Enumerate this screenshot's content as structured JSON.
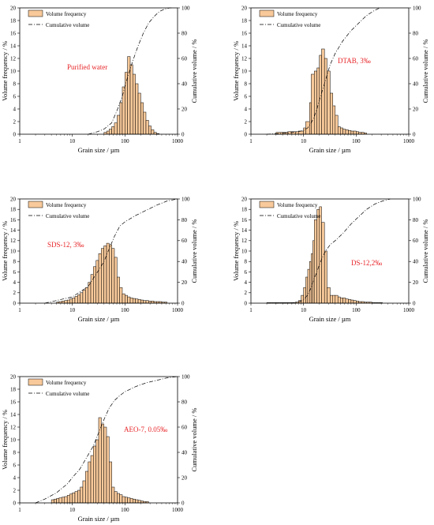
{
  "colors": {
    "bar_fill": "#f8c99a",
    "bar_stroke": "#000000",
    "annotation": "#e8262a"
  },
  "chart_data": [
    {
      "type": "bar+line",
      "annotation": "Purified water",
      "xlabel": "Grain size / µm",
      "ylabel_left": "Volume frequency / %",
      "ylabel_right": "Cumulative volume / %",
      "x_scale": "log",
      "xlim": [
        1,
        1000
      ],
      "x_ticks": [
        1,
        10,
        100,
        1000
      ],
      "ylim_left": [
        0,
        20
      ],
      "yticks_left": [
        0,
        2,
        4,
        6,
        8,
        10,
        12,
        14,
        16,
        18,
        20
      ],
      "ylim_right": [
        0,
        100
      ],
      "yticks_right": [
        0,
        20,
        40,
        60,
        80,
        100
      ],
      "legend": {
        "position": "top-left",
        "entries": [
          "Volume frequency",
          "Cumulative volume"
        ]
      },
      "grid": false,
      "bin_edges": [
        40,
        45,
        50,
        56,
        63,
        71,
        80,
        89,
        100,
        112,
        126,
        141,
        158,
        178,
        200,
        224,
        251,
        282,
        316,
        355,
        398,
        447
      ],
      "volume_frequency": [
        0.3,
        0.5,
        0.8,
        1.2,
        1.8,
        3.0,
        5.0,
        7.5,
        9.8,
        12.3,
        11.0,
        9.5,
        8.0,
        6.5,
        5.0,
        3.5,
        2.2,
        1.3,
        0.7,
        0.3,
        0.1
      ],
      "cumulative": {
        "x": [
          20,
          30,
          40,
          56,
          71,
          89,
          112,
          141,
          178,
          224,
          282,
          355,
          447,
          562,
          708,
          800
        ],
        "y": [
          0,
          2,
          4,
          9,
          19,
          30,
          45,
          58,
          70,
          80,
          88,
          93,
          97,
          99,
          100,
          100
        ]
      }
    },
    {
      "type": "bar+line",
      "annotation": "DTAB, 3‰",
      "xlabel": "Grain size / µm",
      "ylabel_left": "Volume frequency / %",
      "ylabel_right": "Cumulative volume / %",
      "x_scale": "log",
      "xlim": [
        1,
        1000
      ],
      "x_ticks": [
        1,
        10,
        100,
        1000
      ],
      "ylim_left": [
        0,
        20
      ],
      "yticks_left": [
        0,
        2,
        4,
        6,
        8,
        10,
        12,
        14,
        16,
        18,
        20
      ],
      "ylim_right": [
        0,
        100
      ],
      "yticks_right": [
        0,
        20,
        40,
        60,
        80,
        100
      ],
      "legend": {
        "position": "top-left",
        "entries": [
          "Volume frequency",
          "Cumulative volume"
        ]
      },
      "grid": false,
      "bin_edges": [
        3,
        4,
        5,
        6,
        7,
        8,
        10,
        11,
        13,
        14,
        16,
        18,
        20,
        22,
        25,
        28,
        32,
        36,
        40,
        45,
        50,
        56,
        63,
        71,
        80,
        89,
        100,
        112,
        126,
        141,
        158
      ],
      "volume_frequency": [
        0.3,
        0.3,
        0.4,
        0.4,
        0.4,
        0.5,
        1.0,
        2.0,
        5.0,
        9.5,
        10.0,
        10.5,
        12.5,
        13.5,
        12.0,
        10.0,
        6.5,
        4.5,
        3.0,
        1.2,
        1.0,
        0.8,
        0.7,
        0.6,
        0.5,
        0.5,
        0.4,
        0.3,
        0.3,
        0.2
      ],
      "cumulative": {
        "x": [
          2,
          5,
          8,
          10,
          12,
          14,
          16,
          18,
          20,
          25,
          32,
          40,
          56,
          80,
          112,
          158,
          224,
          282
        ],
        "y": [
          0,
          1,
          2,
          3,
          5,
          9,
          14,
          20,
          27,
          40,
          55,
          64,
          74,
          82,
          88,
          94,
          98,
          100
        ]
      }
    },
    {
      "type": "bar+line",
      "annotation": "SDS-12, 3‰",
      "xlabel": "Grain size / µm",
      "ylabel_left": "Volume frequency / %",
      "ylabel_right": "Cumulative volume / %",
      "x_scale": "log",
      "xlim": [
        1,
        1000
      ],
      "x_ticks": [
        1,
        10,
        100,
        1000
      ],
      "ylim_left": [
        0,
        20
      ],
      "yticks_left": [
        0,
        2,
        4,
        6,
        8,
        10,
        12,
        14,
        16,
        18,
        20
      ],
      "ylim_right": [
        0,
        100
      ],
      "yticks_right": [
        0,
        20,
        40,
        60,
        80,
        100
      ],
      "legend": {
        "position": "top-left",
        "entries": [
          "Volume frequency",
          "Cumulative volume"
        ]
      },
      "grid": false,
      "bin_edges": [
        5,
        5.6,
        6.3,
        7.1,
        8,
        8.9,
        10,
        11.2,
        12.6,
        14.1,
        15.8,
        17.8,
        20,
        22.4,
        25.1,
        28.2,
        31.6,
        35.5,
        39.8,
        44.7,
        50.1,
        56.2,
        63.1,
        70.8,
        79.4,
        89.1,
        100,
        112,
        126,
        141,
        158,
        178,
        200,
        224,
        251,
        282,
        316,
        355,
        398,
        447,
        501,
        562,
        631
      ],
      "volume_frequency": [
        0.2,
        0.3,
        0.4,
        0.5,
        0.6,
        0.8,
        1.0,
        1.3,
        1.6,
        2.0,
        2.5,
        3.0,
        4.0,
        5.5,
        7.0,
        8.2,
        9.5,
        10.5,
        11.0,
        11.5,
        11.2,
        10.5,
        8.8,
        5.0,
        3.0,
        1.8,
        1.5,
        1.2,
        1.0,
        0.9,
        0.8,
        0.7,
        0.6,
        0.5,
        0.5,
        0.4,
        0.4,
        0.3,
        0.3,
        0.3,
        0.2,
        0.2
      ],
      "cumulative": {
        "x": [
          3,
          10,
          20,
          32,
          40,
          50,
          63,
          80,
          100,
          158,
          251,
          398,
          631,
          1000
        ],
        "y": [
          0,
          6,
          16,
          32,
          40,
          52,
          64,
          74,
          78,
          84,
          89,
          94,
          98,
          100
        ]
      }
    },
    {
      "type": "bar+line",
      "annotation": "DS-12,2‰",
      "xlabel": "Grain size / µm",
      "ylabel_left": "Volume frequency / %",
      "ylabel_right": "Cumulative volume / %",
      "x_scale": "log",
      "xlim": [
        1,
        1000
      ],
      "x_ticks": [
        1,
        10,
        100,
        1000
      ],
      "ylim_left": [
        0,
        20
      ],
      "yticks_left": [
        0,
        2,
        4,
        6,
        8,
        10,
        12,
        14,
        16,
        18,
        20
      ],
      "ylim_right": [
        0,
        100
      ],
      "yticks_right": [
        0,
        20,
        40,
        60,
        80,
        100
      ],
      "legend": {
        "position": "top-left",
        "entries": [
          "Volume frequency",
          "Cumulative volume"
        ]
      },
      "grid": false,
      "bin_edges": [
        2,
        3,
        4,
        5,
        6,
        7,
        8,
        9,
        10,
        11,
        12,
        13,
        14,
        15,
        16,
        18,
        20,
        22,
        25,
        28,
        32,
        36,
        40,
        45,
        50,
        56,
        63,
        71,
        80,
        89,
        100,
        112,
        126,
        141,
        158,
        178,
        200,
        224,
        251,
        282,
        316
      ],
      "volume_frequency": [
        0.1,
        0.1,
        0.1,
        0.1,
        0.1,
        0.2,
        0.5,
        1.5,
        3.0,
        5.0,
        6.5,
        8.0,
        9.5,
        12.0,
        16.0,
        18.0,
        18.5,
        15.5,
        10.0,
        3.0,
        1.5,
        1.5,
        1.5,
        1.2,
        1.0,
        1.0,
        0.8,
        0.7,
        0.6,
        0.5,
        0.4,
        0.3,
        0.3,
        0.2,
        0.2,
        0.2,
        0.1,
        0.1,
        0.1,
        0.1
      ],
      "cumulative": {
        "x": [
          2,
          5,
          8,
          10,
          12,
          14,
          16,
          18,
          20,
          22,
          25,
          28,
          32,
          40,
          56,
          80,
          112,
          158,
          224,
          316,
          447
        ],
        "y": [
          0,
          0,
          1,
          3,
          8,
          15,
          24,
          30,
          37,
          42,
          48,
          52,
          56,
          60,
          67,
          76,
          83,
          90,
          95,
          98,
          100
        ]
      }
    },
    {
      "type": "bar+line",
      "annotation": "AEO-7, 0.05‰",
      "xlabel": "Grain size / µm",
      "ylabel_left": "Volume frequency / %",
      "ylabel_right": "Cumulative volume / %",
      "x_scale": "log",
      "xlim": [
        1,
        1000
      ],
      "x_ticks": [
        1,
        10,
        100,
        1000
      ],
      "ylim_left": [
        0,
        20
      ],
      "yticks_left": [
        0,
        2,
        4,
        6,
        8,
        10,
        12,
        14,
        16,
        18,
        20
      ],
      "ylim_right": [
        0,
        100
      ],
      "yticks_right": [
        0,
        20,
        40,
        60,
        80,
        100
      ],
      "legend": {
        "position": "top-left",
        "entries": [
          "Volume frequency",
          "Cumulative volume"
        ]
      },
      "grid": false,
      "bin_edges": [
        4,
        4.5,
        5,
        5.6,
        6.3,
        7.1,
        8,
        8.9,
        10,
        11.2,
        12.6,
        14.1,
        15.8,
        17.8,
        20,
        22.4,
        25.1,
        28.2,
        31.6,
        35.5,
        39.8,
        44.7,
        50.1,
        56.2,
        63.1,
        70.8,
        79.4,
        89.1,
        100,
        112,
        126,
        141,
        158,
        178,
        200,
        224,
        251,
        282
      ],
      "volume_frequency": [
        0.5,
        0.6,
        0.7,
        0.8,
        0.9,
        1.0,
        1.2,
        1.4,
        1.6,
        1.8,
        2.0,
        2.5,
        3.5,
        5.0,
        6.5,
        7.5,
        9.0,
        10.0,
        13.5,
        12.5,
        12.0,
        10.5,
        6.5,
        2.5,
        1.8,
        1.5,
        1.3,
        1.0,
        0.9,
        0.8,
        0.7,
        0.6,
        0.5,
        0.4,
        0.3,
        0.2,
        0.2
      ],
      "cumulative": {
        "x": [
          2,
          3,
          5,
          8,
          10,
          14,
          20,
          25,
          32,
          40,
          50,
          63,
          80,
          100,
          158,
          251,
          398,
          631,
          1000
        ],
        "y": [
          0,
          3,
          8,
          15,
          20,
          27,
          38,
          45,
          56,
          66,
          75,
          81,
          85,
          88,
          92,
          95,
          97,
          99,
          100
        ]
      }
    }
  ]
}
